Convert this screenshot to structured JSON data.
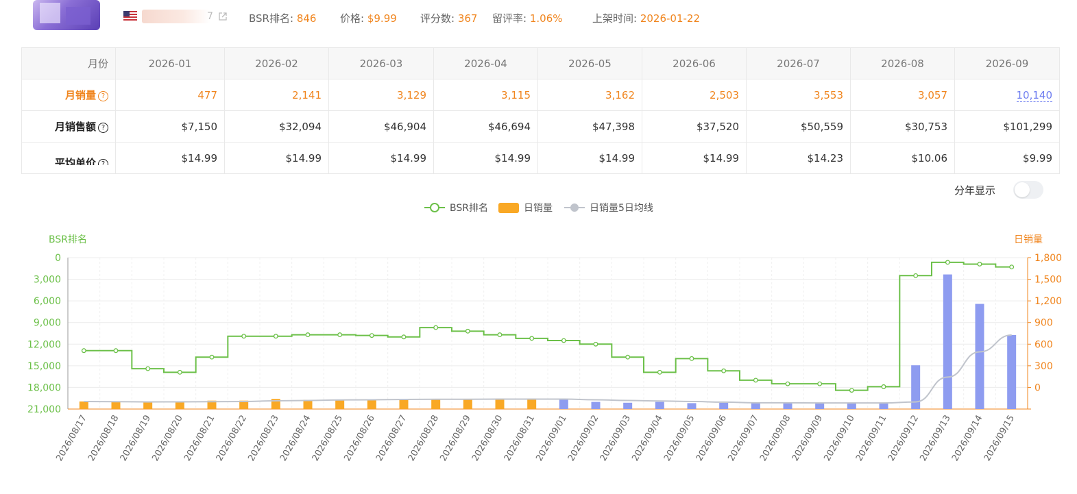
{
  "header": {
    "title_tail": "7",
    "metrics": [
      {
        "label": "BSR排名:",
        "value": "846"
      },
      {
        "label": "价格:",
        "value": "$9.99"
      },
      {
        "label": "评分数:",
        "value": "367"
      },
      {
        "label": "留评率:",
        "value": "1.06%"
      },
      {
        "label": "上架时间:",
        "value": "2026-01-22"
      }
    ]
  },
  "table": {
    "head_label": "月份",
    "months": [
      "2026-01",
      "2026-02",
      "2026-03",
      "2026-04",
      "2026-05",
      "2026-06",
      "2026-07",
      "2026-08",
      "2026-09"
    ],
    "rows": [
      {
        "label": "月销量",
        "values": [
          "477",
          "2,141",
          "3,129",
          "3,115",
          "3,162",
          "2,503",
          "3,553",
          "3,057",
          "10,140"
        ]
      },
      {
        "label": "月销售额",
        "values": [
          "$7,150",
          "$32,094",
          "$46,904",
          "$46,694",
          "$47,398",
          "$37,520",
          "$50,559",
          "$30,753",
          "$101,299"
        ]
      },
      {
        "label": "平均单价",
        "values": [
          "$14.99",
          "$14.99",
          "$14.99",
          "$14.99",
          "$14.99",
          "$14.99",
          "$14.23",
          "$10.06",
          "$9.99"
        ]
      }
    ]
  },
  "toggle": {
    "label": "分年显示"
  },
  "colors": {
    "green": "#6cc049",
    "orange": "#f9a825",
    "purple": "#8e9cf0",
    "gray": "#c0c4cc",
    "accent": "#f0851e"
  },
  "chart_data": {
    "type": "bar",
    "legend": [
      "BSR排名",
      "日销量",
      "日销量5日均线"
    ],
    "y_left_label": "BSR排名",
    "y_right_label": "日销量",
    "y_left_ticks": [
      "0",
      "3,000",
      "6,000",
      "9,000",
      "12,000",
      "15,000",
      "18,000",
      "21,000"
    ],
    "y_right_ticks": [
      "1,800",
      "1,500",
      "1,200",
      "900",
      "600",
      "300",
      "0"
    ],
    "y_left_range": [
      0,
      21000
    ],
    "y_right_range": [
      0,
      1800
    ],
    "dates": [
      "2026/08/17",
      "2026/08/18",
      "2026/08/19",
      "2026/08/20",
      "2026/08/21",
      "2026/08/22",
      "2026/08/23",
      "2026/08/24",
      "2026/08/25",
      "2026/08/26",
      "2026/08/27",
      "2026/08/28",
      "2026/08/29",
      "2026/08/30",
      "2026/08/31",
      "2026/09/01",
      "2026/09/02",
      "2026/09/03",
      "2026/09/04",
      "2026/09/05",
      "2026/09/06",
      "2026/09/07",
      "2026/09/08",
      "2026/09/09",
      "2026/09/10",
      "2026/09/11",
      "2026/09/12",
      "2026/09/13",
      "2026/09/14",
      "2026/09/15"
    ],
    "bsr": [
      12900,
      12900,
      15400,
      15900,
      13800,
      10900,
      10900,
      10700,
      10700,
      10800,
      11000,
      9700,
      10200,
      10700,
      11200,
      11500,
      12000,
      13800,
      15900,
      14000,
      15700,
      17000,
      17500,
      17500,
      18400,
      17900,
      2500,
      650,
      900,
      1300
    ],
    "daily_sales": [
      90,
      90,
      80,
      80,
      100,
      100,
      120,
      110,
      110,
      110,
      120,
      120,
      110,
      120,
      120,
      110,
      85,
      75,
      85,
      70,
      75,
      75,
      70,
      75,
      70,
      75,
      520,
      1600,
      1250,
      880
    ],
    "ma5": [
      90,
      88,
      85,
      86,
      88,
      90,
      98,
      102,
      108,
      110,
      114,
      116,
      116,
      118,
      118,
      118,
      110,
      102,
      96,
      90,
      82,
      74,
      74,
      72,
      72,
      72,
      85,
      380,
      680,
      880
    ]
  }
}
